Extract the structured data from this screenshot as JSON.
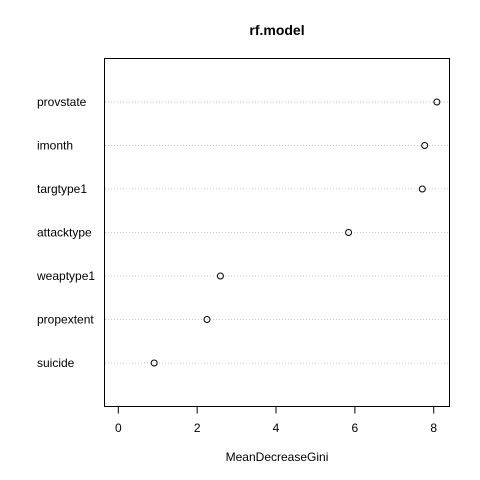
{
  "chart_data": {
    "type": "scatter",
    "title": "rf.model",
    "xlabel": "MeanDecreaseGini",
    "ylabel": "",
    "xlim": [
      -0.35,
      8.4
    ],
    "xticks": [
      "0",
      "2",
      "4",
      "6",
      "8"
    ],
    "grid": "horizontal dotted",
    "categories": [
      "provstate",
      "imonth",
      "targtype1",
      "attacktype",
      "weaptype1",
      "propextent",
      "suicide"
    ],
    "values": [
      8.08,
      7.77,
      7.71,
      5.84,
      2.59,
      2.25,
      0.91
    ]
  }
}
